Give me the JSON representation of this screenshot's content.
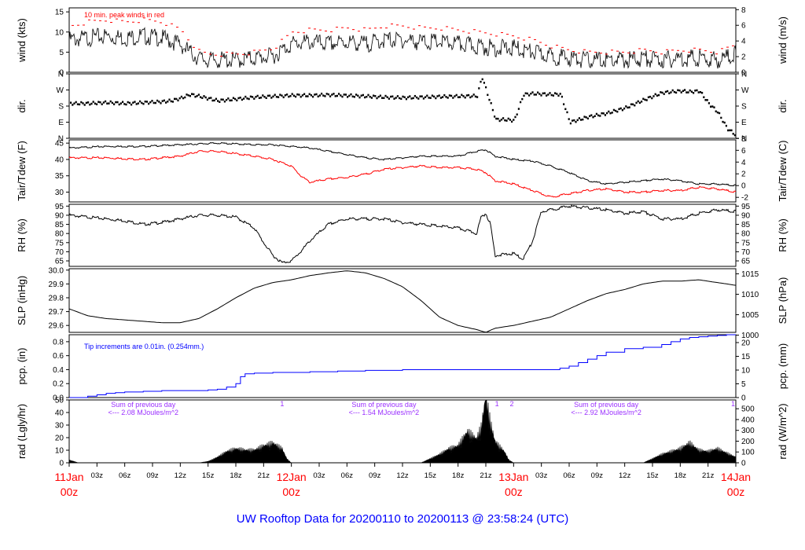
{
  "title": "UW Rooftop Data for 20200110  to  20200113 @ 23:58:24  (UTC)",
  "colors": {
    "series": "#000000",
    "peak": "#ff0000",
    "dewpoint": "#ff0000",
    "precip": "#0000ff",
    "note_precip": "#0000ff",
    "note_rad": "#9b30ff",
    "title": "#0000ff",
    "day_labels": "#ff0000"
  },
  "x_axis": {
    "hour_ticks": [
      "03z",
      "06z",
      "09z",
      "12z",
      "15z",
      "18z",
      "21z",
      "03z",
      "06z",
      "09z",
      "12z",
      "15z",
      "18z",
      "21z",
      "03z",
      "06z",
      "09z",
      "12z",
      "15z",
      "18z",
      "21z"
    ],
    "day_labels": [
      {
        "date": "11Jan",
        "hour": "00z",
        "hours": 0
      },
      {
        "date": "12Jan",
        "hour": "00z",
        "hours": 24
      },
      {
        "date": "13Jan",
        "hour": "00z",
        "hours": 48
      },
      {
        "date": "14Jan",
        "hour": "00z",
        "hours": 72
      }
    ]
  },
  "panels": {
    "wind": {
      "ylabel_left": "wind (kts)",
      "ylabel_right": "wind (m/s)",
      "left_ticks": [
        "0",
        "5",
        "10",
        "15"
      ],
      "right_ticks": [
        "0",
        "2",
        "4",
        "6",
        "8"
      ],
      "note": "10 min. peak winds in red"
    },
    "dir": {
      "ylabel_left": "dir.",
      "ylabel_right": "dir.",
      "left_ticks": [
        "N",
        "E",
        "S",
        "W",
        "N"
      ],
      "right_ticks": [
        "N",
        "E",
        "S",
        "W",
        "N"
      ]
    },
    "temp": {
      "ylabel_left": "Tair/Tdew (F)",
      "ylabel_right": "Tair/Tdew (C)",
      "left_ticks": [
        "30",
        "35",
        "40",
        "45"
      ],
      "right_ticks": [
        "-2",
        "0",
        "2",
        "4",
        "6",
        "8"
      ]
    },
    "rh": {
      "ylabel_left": "RH (%)",
      "ylabel_right": "RH (%)",
      "left_ticks": [
        "65",
        "70",
        "75",
        "80",
        "85",
        "90",
        "95"
      ],
      "right_ticks": [
        "65",
        "70",
        "75",
        "80",
        "85",
        "90",
        "95"
      ]
    },
    "slp": {
      "ylabel_left": "SLP (inHg)",
      "ylabel_right": "SLP (hPa)",
      "left_ticks": [
        "29.6",
        "29.7",
        "29.8",
        "29.9",
        "30.0"
      ],
      "right_ticks": [
        "1000",
        "1005",
        "1010",
        "1015"
      ]
    },
    "pcp": {
      "ylabel_left": "pcp. (in)",
      "ylabel_right": "pcp. (mm)",
      "left_ticks": [
        "0.0",
        "0.2",
        "0.4",
        "0.6",
        "0.8"
      ],
      "right_ticks": [
        "0",
        "5",
        "10",
        "15",
        "20"
      ],
      "note": "Tip increments are 0.01in. (0.254mm.)"
    },
    "rad": {
      "ylabel_left": "rad (Lgly/hr)",
      "ylabel_right": "rad (W/m^2)",
      "left_ticks": [
        "0",
        "10",
        "20",
        "30",
        "40",
        "50"
      ],
      "right_ticks": [
        "0",
        "100",
        "200",
        "300",
        "400",
        "500"
      ],
      "sums": [
        {
          "line1": "Sum of previous day",
          "line2": "<--- 2.08 MJoules/m^2"
        },
        {
          "line1": "Sum of previous day",
          "line2": "<--- 1.54 MJoules/m^2"
        },
        {
          "line1": "Sum of previous day",
          "line2": "<--- 2.92 MJoules/m^2"
        }
      ],
      "markers": [
        "1",
        "1",
        "2",
        "1"
      ]
    }
  },
  "chart_data": {
    "type": "line",
    "x_unit": "hours since 11Jan 00z",
    "xlim": [
      0,
      72
    ],
    "series": [
      {
        "name": "wind",
        "unit": "kts",
        "ylim": [
          0,
          16
        ],
        "x": [
          0,
          2,
          4,
          6,
          8,
          10,
          12,
          13,
          14,
          15,
          16,
          18,
          20,
          22,
          24,
          26,
          28,
          30,
          32,
          34,
          36,
          38,
          40,
          42,
          44,
          46,
          48,
          50,
          52,
          54,
          56,
          58,
          60,
          62,
          64,
          66,
          68,
          70,
          72
        ],
        "y": [
          8,
          8.5,
          9,
          8.5,
          9,
          8.5,
          7,
          5,
          3.5,
          3,
          3,
          3,
          3.5,
          4,
          7,
          7.5,
          7,
          7.5,
          7,
          8,
          8,
          7.5,
          7.5,
          7,
          6.5,
          6,
          6,
          5,
          4,
          3.5,
          3,
          3,
          3,
          3.5,
          3,
          3.5,
          3.5,
          3,
          4.5
        ]
      },
      {
        "name": "peak",
        "unit": "kts",
        "ylim": [
          0,
          16
        ],
        "x": [
          0,
          2,
          4,
          6,
          8,
          10,
          12,
          13,
          14,
          15,
          16,
          18,
          20,
          22,
          24,
          26,
          28,
          30,
          32,
          34,
          36,
          38,
          40,
          42,
          44,
          46,
          48,
          50,
          52,
          54,
          56,
          58,
          60,
          62,
          64,
          66,
          68,
          70,
          72
        ],
        "y": [
          11,
          12,
          12.5,
          12,
          12.5,
          12,
          10,
          7,
          4.5,
          4,
          4,
          4,
          4.5,
          5.5,
          9.5,
          10,
          10,
          10.5,
          10,
          11,
          11,
          10.5,
          10.5,
          10,
          9.5,
          9,
          8.5,
          7.5,
          6,
          5,
          4.5,
          4.5,
          4.5,
          5,
          4.5,
          5,
          5,
          4.5,
          6.5
        ]
      },
      {
        "name": "dir",
        "unit": "deg",
        "ylim": [
          0,
          360
        ],
        "x": [
          0,
          2,
          4,
          6,
          8,
          10,
          11,
          12,
          13,
          14,
          16,
          18,
          20,
          22,
          24,
          26,
          28,
          30,
          32,
          34,
          36,
          38,
          40,
          42,
          44,
          44.5,
          46,
          47,
          48,
          49,
          50,
          52,
          53,
          54,
          55,
          56,
          58,
          60,
          62,
          64,
          66,
          67,
          68,
          69,
          70,
          71,
          72
        ],
        "y": [
          200,
          200,
          205,
          200,
          205,
          210,
          215,
          230,
          250,
          240,
          215,
          225,
          235,
          240,
          245,
          245,
          248,
          244,
          240,
          235,
          232,
          235,
          238,
          240,
          242,
          350,
          110,
          110,
          105,
          250,
          255,
          250,
          252,
          95,
          110,
          125,
          145,
          175,
          220,
          260,
          270,
          265,
          270,
          200,
          150,
          60,
          20
        ]
      },
      {
        "name": "Tair",
        "unit": "F",
        "ylim": [
          27,
          46
        ],
        "x": [
          0,
          4,
          8,
          12,
          16,
          20,
          22,
          24,
          26,
          28,
          30,
          32,
          34,
          36,
          38,
          40,
          42,
          44,
          45,
          46,
          48,
          50,
          52,
          54,
          56,
          58,
          60,
          62,
          64,
          66,
          68,
          70,
          72
        ],
        "y": [
          43.5,
          44,
          44,
          44.5,
          45,
          44.5,
          44.5,
          44,
          43.5,
          42.5,
          41.5,
          40.5,
          40,
          40.5,
          41,
          41,
          41,
          42.5,
          43,
          41,
          40,
          39.5,
          38,
          36,
          33.5,
          32.5,
          33,
          33.5,
          34,
          33.5,
          32.5,
          32.5,
          32
        ]
      },
      {
        "name": "Tdew",
        "unit": "F",
        "ylim": [
          27,
          46
        ],
        "x": [
          0,
          4,
          8,
          12,
          14,
          16,
          20,
          22,
          24,
          25,
          26,
          28,
          30,
          32,
          34,
          36,
          38,
          40,
          42,
          44,
          45,
          46,
          48,
          50,
          52,
          54,
          56,
          58,
          60,
          62,
          64,
          66,
          68,
          70,
          72
        ],
        "y": [
          40.5,
          40.5,
          40,
          41,
          42.5,
          42.5,
          41,
          40,
          38,
          35,
          33,
          34,
          34.5,
          35.5,
          37,
          37.5,
          38,
          37.5,
          37.5,
          37,
          36,
          33.5,
          32.5,
          30.5,
          28.5,
          29.5,
          30.5,
          31,
          30,
          30,
          30.5,
          30.5,
          31.5,
          31,
          30
        ]
      },
      {
        "name": "RH",
        "unit": "%",
        "ylim": [
          62,
          96
        ],
        "x": [
          0,
          2,
          4,
          6,
          8,
          10,
          12,
          14,
          16,
          18,
          20,
          21,
          22,
          23,
          24,
          25,
          26,
          28,
          30,
          32,
          34,
          36,
          38,
          40,
          42,
          44,
          44.5,
          45,
          45.5,
          46,
          48,
          49,
          50,
          51,
          52,
          54,
          56,
          58,
          60,
          62,
          64,
          66,
          68,
          70,
          72
        ],
        "y": [
          90,
          89,
          88,
          87,
          85,
          86,
          88,
          90,
          90,
          89,
          83,
          75,
          68,
          64,
          65,
          70,
          76,
          85,
          88,
          88,
          88,
          86,
          85,
          84,
          83,
          80,
          89,
          91,
          85,
          68,
          69,
          66,
          75,
          92,
          93,
          95,
          94,
          93,
          91,
          92,
          88,
          88,
          91,
          93,
          92
        ]
      },
      {
        "name": "SLP",
        "unit": "inHg",
        "ylim": [
          29.55,
          30.01
        ],
        "x": [
          0,
          2,
          4,
          6,
          8,
          10,
          12,
          14,
          16,
          18,
          20,
          22,
          24,
          26,
          28,
          30,
          32,
          34,
          36,
          38,
          40,
          42,
          44,
          45,
          46,
          48,
          50,
          52,
          54,
          56,
          58,
          60,
          62,
          64,
          66,
          68,
          70,
          72
        ],
        "y": [
          29.72,
          29.67,
          29.65,
          29.64,
          29.63,
          29.62,
          29.62,
          29.65,
          29.72,
          29.8,
          29.87,
          29.91,
          29.93,
          29.96,
          29.98,
          29.995,
          29.98,
          29.94,
          29.88,
          29.78,
          29.66,
          29.6,
          29.57,
          29.55,
          29.58,
          29.6,
          29.63,
          29.66,
          29.72,
          29.78,
          29.83,
          29.86,
          29.9,
          29.92,
          29.92,
          29.93,
          29.91,
          29.89
        ]
      },
      {
        "name": "pcp",
        "unit": "in",
        "ylim": [
          0,
          0.9
        ],
        "x": [
          0,
          1,
          2,
          3,
          4,
          5,
          6,
          8,
          10,
          12,
          14,
          15,
          16,
          17,
          18,
          18.5,
          19,
          20,
          22,
          24,
          26,
          28,
          29,
          30,
          32,
          34,
          36,
          38,
          40,
          42,
          44,
          46,
          48,
          50,
          52,
          53,
          54,
          55,
          56,
          57,
          58,
          60,
          62,
          64,
          65,
          66,
          67,
          68,
          69,
          70,
          71,
          72
        ],
        "y": [
          0,
          0,
          0.02,
          0.04,
          0.06,
          0.07,
          0.08,
          0.09,
          0.1,
          0.1,
          0.1,
          0.11,
          0.12,
          0.15,
          0.2,
          0.3,
          0.34,
          0.35,
          0.36,
          0.36,
          0.37,
          0.37,
          0.38,
          0.38,
          0.39,
          0.39,
          0.4,
          0.4,
          0.4,
          0.4,
          0.4,
          0.4,
          0.4,
          0.4,
          0.4,
          0.42,
          0.45,
          0.5,
          0.55,
          0.6,
          0.65,
          0.7,
          0.72,
          0.76,
          0.8,
          0.84,
          0.86,
          0.87,
          0.88,
          0.89,
          0.9,
          0.9
        ]
      },
      {
        "name": "rad",
        "unit": "Lgly/hr",
        "ylim": [
          0,
          50
        ],
        "x": [
          0,
          0.5,
          1,
          14,
          15,
          16,
          17,
          18,
          19,
          20,
          21,
          22,
          23,
          23.5,
          24,
          38,
          39,
          40,
          41,
          42,
          43,
          44,
          44.5,
          45,
          45.5,
          46,
          47,
          47.5,
          48,
          62,
          63,
          64,
          65,
          66,
          67,
          68,
          69,
          70,
          71,
          72
        ],
        "y": [
          2,
          1,
          0,
          0,
          1,
          4,
          8,
          10,
          9,
          9,
          12,
          14,
          10,
          3,
          0,
          0,
          3,
          6,
          10,
          12,
          22,
          17,
          25,
          47,
          28,
          15,
          8,
          2,
          0,
          0,
          3,
          6,
          8,
          10,
          14,
          9,
          8,
          10,
          7,
          4
        ]
      }
    ]
  }
}
